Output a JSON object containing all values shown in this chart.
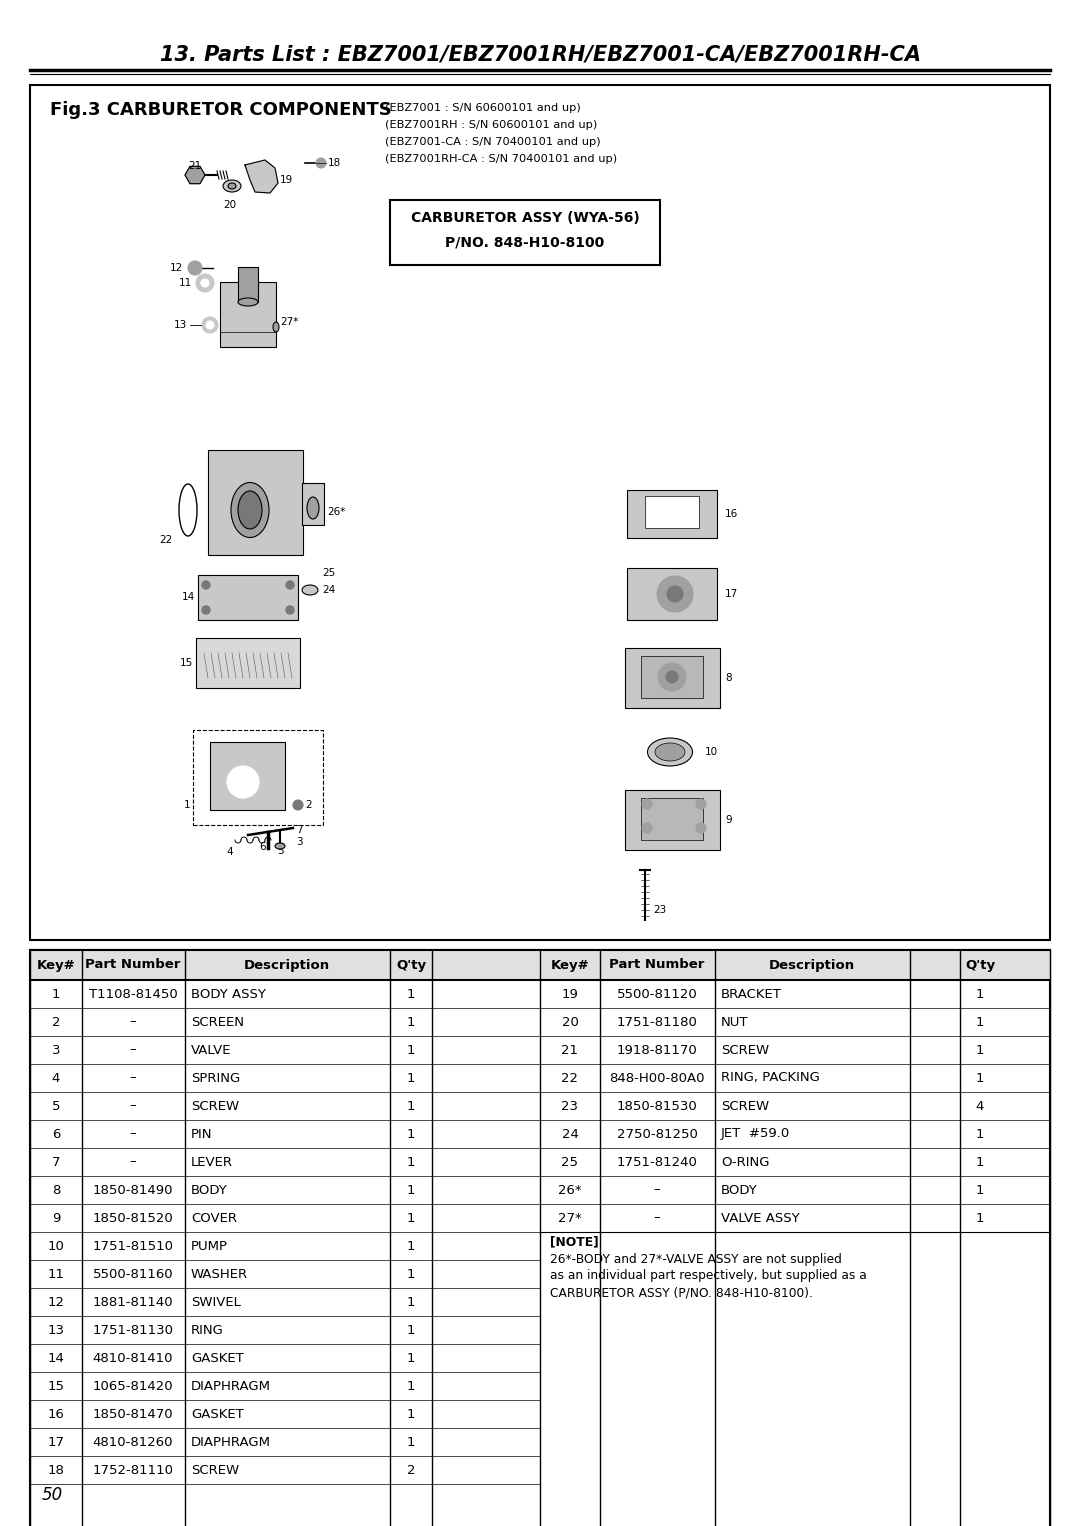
{
  "title": "13. Parts List : EBZ7001/EBZ7001RH/EBZ7001-CA/EBZ7001RH-CA",
  "page_number": "50",
  "fig_title": "Fig.3 CARBURETOR COMPONENTS",
  "fig_subtitle_lines": [
    "(EBZ7001 : S/N 60600101 and up)",
    "(EBZ7001RH : S/N 60600101 and up)",
    "(EBZ7001-CA : S/N 70400101 and up)",
    "(EBZ7001RH-CA : S/N 70400101 and up)"
  ],
  "carb_box_line1": "CARBURETOR ASSY (WYA-56)",
  "carb_box_line2": "P/NO. 848-H10-8100",
  "table_header": [
    "Key#",
    "Part Number",
    "Description",
    "Q'ty"
  ],
  "left_table": [
    [
      "1",
      "T1108-81450",
      "BODY ASSY",
      "1"
    ],
    [
      "2",
      "–",
      "SCREEN",
      "1"
    ],
    [
      "3",
      "–",
      "VALVE",
      "1"
    ],
    [
      "4",
      "–",
      "SPRING",
      "1"
    ],
    [
      "5",
      "–",
      "SCREW",
      "1"
    ],
    [
      "6",
      "–",
      "PIN",
      "1"
    ],
    [
      "7",
      "–",
      "LEVER",
      "1"
    ],
    [
      "8",
      "1850-81490",
      "BODY",
      "1"
    ],
    [
      "9",
      "1850-81520",
      "COVER",
      "1"
    ],
    [
      "10",
      "1751-81510",
      "PUMP",
      "1"
    ],
    [
      "11",
      "5500-81160",
      "WASHER",
      "1"
    ],
    [
      "12",
      "1881-81140",
      "SWIVEL",
      "1"
    ],
    [
      "13",
      "1751-81130",
      "RING",
      "1"
    ],
    [
      "14",
      "4810-81410",
      "GASKET",
      "1"
    ],
    [
      "15",
      "1065-81420",
      "DIAPHRAGM",
      "1"
    ],
    [
      "16",
      "1850-81470",
      "GASKET",
      "1"
    ],
    [
      "17",
      "4810-81260",
      "DIAPHRAGM",
      "1"
    ],
    [
      "18",
      "1752-81110",
      "SCREW",
      "2"
    ]
  ],
  "right_table": [
    [
      "19",
      "5500-81120",
      "BRACKET",
      "1"
    ],
    [
      "20",
      "1751-81180",
      "NUT",
      "1"
    ],
    [
      "21",
      "1918-81170",
      "SCREW",
      "1"
    ],
    [
      "22",
      "848-H00-80A0",
      "RING, PACKING",
      "1"
    ],
    [
      "23",
      "1850-81530",
      "SCREW",
      "4"
    ],
    [
      "24",
      "2750-81250",
      "JET  #59.0",
      "1"
    ],
    [
      "25",
      "1751-81240",
      "O-RING",
      "1"
    ],
    [
      "26*",
      "–",
      "BODY",
      "1"
    ],
    [
      "27*",
      "–",
      "VALVE ASSY",
      "1"
    ]
  ],
  "note_lines": [
    "[NOTE]",
    "26*-BODY and 27*-VALVE ASSY are not supplied",
    "as an individual part respectively, but supplied as a",
    "CARBURETOR ASSY (P/NO. 848-H10-8100)."
  ],
  "bg_color": "#ffffff",
  "border_color": "#000000",
  "table_font_size": 9.5,
  "title_font_size": 15,
  "fig_title_font_size": 13
}
